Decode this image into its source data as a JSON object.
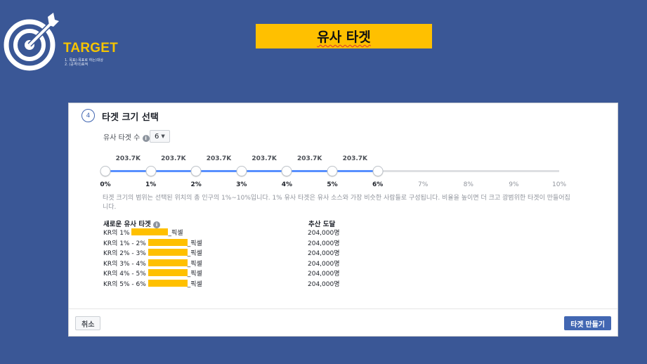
{
  "brand": {
    "name": "TARGET",
    "subtitle_lines": [
      "1. 목표(:목표로 하는)대상",
      "2. (공격의)표적"
    ],
    "logo_icon": "target-arrow-icon",
    "accent_color": "#f5c400"
  },
  "banner": {
    "title": "유사 타겟",
    "background": "#ffc000"
  },
  "dialog": {
    "step_number": "4",
    "title": "타겟 크기 선택",
    "count_label": "유사 타겟 수",
    "count_value": "6",
    "slider": {
      "value_labels": [
        "203.7K",
        "203.7K",
        "203.7K",
        "203.7K",
        "203.7K",
        "203.7K"
      ],
      "ticks": [
        "0%",
        "1%",
        "2%",
        "3%",
        "4%",
        "5%",
        "6%",
        "7%",
        "8%",
        "9%",
        "10%"
      ],
      "selected_max_percent": 6
    },
    "description": "타겟 크기의 범위는 선택된 위치의 총 인구의 1%~10%입니다. 1% 유사 타겟은 유사 소스와 가장 비슷한 사람들로 구성됩니다. 비율을 높이면 더 크고 광범위한 타겟이 만들어집니다.",
    "table": {
      "col_name": "새로운 유사 타겟",
      "col_reach": "추산 도달",
      "rows": [
        {
          "prefix": "KR의 1%",
          "suffix": "_픽셀",
          "reach": "204,000명"
        },
        {
          "prefix": "KR의 1% - 2%",
          "suffix": "_픽셀",
          "reach": "204,000명"
        },
        {
          "prefix": "KR의 2% - 3%",
          "suffix": "_픽셀",
          "reach": "204,000명"
        },
        {
          "prefix": "KR의 3% - 4%",
          "suffix": "_픽셀",
          "reach": "204,000명"
        },
        {
          "prefix": "KR의 4% - 5%",
          "suffix": "_픽셀",
          "reach": "204,000명"
        },
        {
          "prefix": "KR의 5% - 6%",
          "suffix": "_픽셀",
          "reach": "204,000명"
        }
      ]
    },
    "cancel_label": "취소",
    "create_label": "타겟 만들기",
    "primary_color": "#4267b2",
    "slider_fill_color": "#5890ff"
  }
}
